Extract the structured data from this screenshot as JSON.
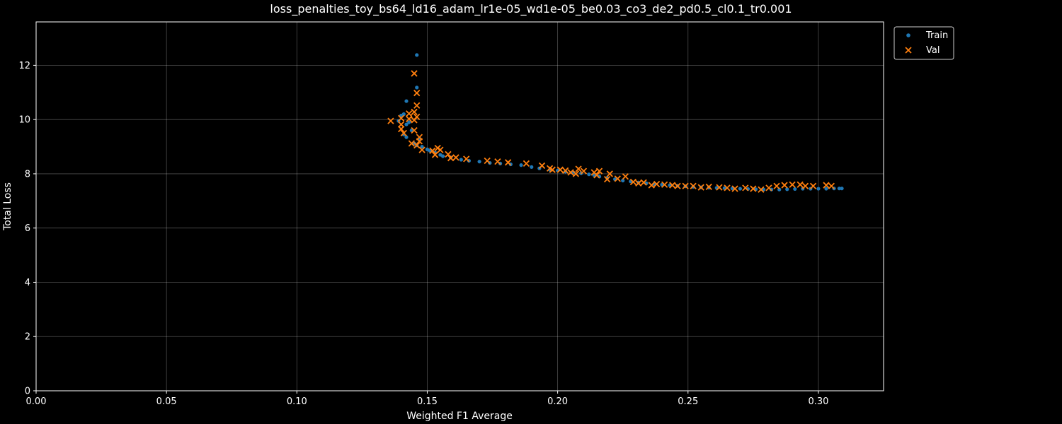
{
  "chart_data": {
    "type": "scatter",
    "title": "loss_penalties_toy_bs64_ld16_adam_lr1e-05_wd1e-05_be0.03_co3_de2_pd0.5_cl0.1_tr0.001",
    "xlabel": "Weighted F1 Average",
    "ylabel": "Total Loss",
    "xlim": [
      0.0,
      0.325
    ],
    "ylim": [
      0.0,
      13.6
    ],
    "xticks": [
      "0.00",
      "0.05",
      "0.10",
      "0.15",
      "0.20",
      "0.25",
      "0.30"
    ],
    "yticks": [
      "0",
      "2",
      "4",
      "6",
      "8",
      "10",
      "12"
    ],
    "grid": true,
    "legend_position": "outside-top-right",
    "series": [
      {
        "name": "Train",
        "marker": "dot",
        "color": "#1f77b4",
        "points": [
          [
            0.146,
            12.38
          ],
          [
            0.146,
            11.18
          ],
          [
            0.142,
            10.68
          ],
          [
            0.14,
            10.15
          ],
          [
            0.141,
            10.2
          ],
          [
            0.139,
            9.95
          ],
          [
            0.143,
            9.9
          ],
          [
            0.142,
            9.82
          ],
          [
            0.144,
            9.6
          ],
          [
            0.141,
            9.45
          ],
          [
            0.142,
            9.35
          ],
          [
            0.147,
            9.3
          ],
          [
            0.145,
            9.12
          ],
          [
            0.146,
            9.05
          ],
          [
            0.148,
            9.0
          ],
          [
            0.15,
            8.9
          ],
          [
            0.151,
            8.85
          ],
          [
            0.153,
            8.78
          ],
          [
            0.155,
            8.7
          ],
          [
            0.156,
            8.65
          ],
          [
            0.159,
            8.6
          ],
          [
            0.163,
            8.52
          ],
          [
            0.166,
            8.48
          ],
          [
            0.17,
            8.45
          ],
          [
            0.174,
            8.4
          ],
          [
            0.178,
            8.38
          ],
          [
            0.182,
            8.35
          ],
          [
            0.186,
            8.32
          ],
          [
            0.19,
            8.25
          ],
          [
            0.193,
            8.2
          ],
          [
            0.197,
            8.15
          ],
          [
            0.2,
            8.12
          ],
          [
            0.203,
            8.08
          ],
          [
            0.206,
            8.05
          ],
          [
            0.209,
            8.02
          ],
          [
            0.212,
            7.98
          ],
          [
            0.214,
            7.95
          ],
          [
            0.216,
            7.9
          ],
          [
            0.219,
            7.85
          ],
          [
            0.222,
            7.8
          ],
          [
            0.225,
            7.75
          ],
          [
            0.228,
            7.72
          ],
          [
            0.231,
            7.68
          ],
          [
            0.234,
            7.65
          ],
          [
            0.237,
            7.62
          ],
          [
            0.24,
            7.6
          ],
          [
            0.243,
            7.58
          ],
          [
            0.246,
            7.56
          ],
          [
            0.249,
            7.54
          ],
          [
            0.252,
            7.52
          ],
          [
            0.255,
            7.5
          ],
          [
            0.258,
            7.49
          ],
          [
            0.261,
            7.48
          ],
          [
            0.264,
            7.47
          ],
          [
            0.267,
            7.46
          ],
          [
            0.27,
            7.45
          ],
          [
            0.273,
            7.44
          ],
          [
            0.276,
            7.43
          ],
          [
            0.279,
            7.42
          ],
          [
            0.282,
            7.42
          ],
          [
            0.285,
            7.42
          ],
          [
            0.288,
            7.43
          ],
          [
            0.291,
            7.44
          ],
          [
            0.294,
            7.45
          ],
          [
            0.297,
            7.45
          ],
          [
            0.3,
            7.45
          ],
          [
            0.303,
            7.45
          ],
          [
            0.306,
            7.46
          ],
          [
            0.308,
            7.46
          ],
          [
            0.309,
            7.46
          ]
        ]
      },
      {
        "name": "Val",
        "marker": "x",
        "color": "#ff7f0e",
        "points": [
          [
            0.145,
            11.7
          ],
          [
            0.146,
            10.98
          ],
          [
            0.146,
            10.52
          ],
          [
            0.143,
            10.22
          ],
          [
            0.145,
            10.28
          ],
          [
            0.146,
            10.1
          ],
          [
            0.14,
            10.05
          ],
          [
            0.143,
            10.02
          ],
          [
            0.145,
            9.98
          ],
          [
            0.136,
            9.95
          ],
          [
            0.14,
            9.82
          ],
          [
            0.14,
            9.65
          ],
          [
            0.145,
            9.6
          ],
          [
            0.141,
            9.5
          ],
          [
            0.147,
            9.35
          ],
          [
            0.147,
            9.2
          ],
          [
            0.144,
            9.12
          ],
          [
            0.146,
            9.05
          ],
          [
            0.148,
            8.88
          ],
          [
            0.152,
            8.85
          ],
          [
            0.154,
            8.95
          ],
          [
            0.155,
            8.88
          ],
          [
            0.153,
            8.7
          ],
          [
            0.158,
            8.72
          ],
          [
            0.159,
            8.58
          ],
          [
            0.161,
            8.6
          ],
          [
            0.165,
            8.55
          ],
          [
            0.173,
            8.48
          ],
          [
            0.177,
            8.45
          ],
          [
            0.181,
            8.42
          ],
          [
            0.188,
            8.38
          ],
          [
            0.194,
            8.3
          ],
          [
            0.197,
            8.2
          ],
          [
            0.198,
            8.15
          ],
          [
            0.201,
            8.15
          ],
          [
            0.203,
            8.12
          ],
          [
            0.205,
            8.05
          ],
          [
            0.207,
            8.0
          ],
          [
            0.208,
            8.18
          ],
          [
            0.21,
            8.1
          ],
          [
            0.214,
            8.05
          ],
          [
            0.215,
            7.95
          ],
          [
            0.216,
            8.1
          ],
          [
            0.219,
            7.8
          ],
          [
            0.22,
            8.0
          ],
          [
            0.223,
            7.82
          ],
          [
            0.226,
            7.9
          ],
          [
            0.229,
            7.7
          ],
          [
            0.231,
            7.65
          ],
          [
            0.233,
            7.68
          ],
          [
            0.236,
            7.58
          ],
          [
            0.238,
            7.62
          ],
          [
            0.241,
            7.6
          ],
          [
            0.244,
            7.58
          ],
          [
            0.246,
            7.55
          ],
          [
            0.249,
            7.55
          ],
          [
            0.252,
            7.55
          ],
          [
            0.255,
            7.5
          ],
          [
            0.258,
            7.52
          ],
          [
            0.262,
            7.5
          ],
          [
            0.265,
            7.48
          ],
          [
            0.268,
            7.45
          ],
          [
            0.272,
            7.48
          ],
          [
            0.275,
            7.45
          ],
          [
            0.278,
            7.42
          ],
          [
            0.281,
            7.48
          ],
          [
            0.284,
            7.55
          ],
          [
            0.287,
            7.58
          ],
          [
            0.29,
            7.6
          ],
          [
            0.293,
            7.6
          ],
          [
            0.295,
            7.55
          ],
          [
            0.298,
            7.55
          ],
          [
            0.303,
            7.58
          ],
          [
            0.305,
            7.55
          ]
        ]
      }
    ]
  }
}
